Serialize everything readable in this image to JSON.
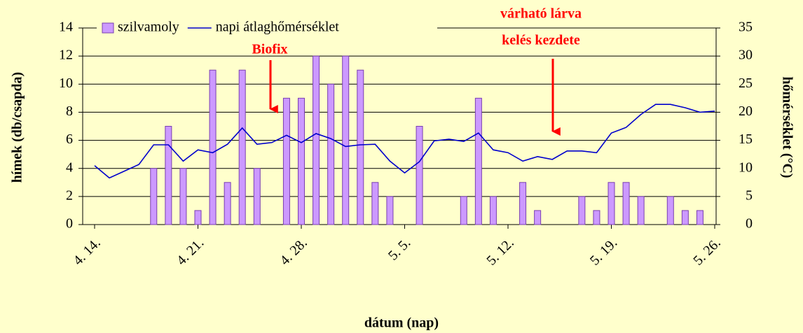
{
  "chart_data": {
    "type": "bar_line",
    "categories": [
      "4. 14.",
      null,
      null,
      null,
      null,
      null,
      null,
      "4. 21.",
      null,
      null,
      null,
      null,
      null,
      null,
      "4. 28.",
      null,
      null,
      null,
      null,
      null,
      null,
      "5. 5.",
      null,
      null,
      null,
      null,
      null,
      null,
      "5. 12.",
      null,
      null,
      null,
      null,
      null,
      null,
      "5. 19.",
      null,
      null,
      null,
      null,
      null,
      null,
      "5. 26."
    ],
    "series": [
      {
        "name": "szilvamoly",
        "type": "bar",
        "color": "#cc99ff",
        "axis": "y",
        "values": [
          null,
          null,
          null,
          null,
          4,
          7,
          4,
          1,
          11,
          3,
          11,
          4,
          null,
          9,
          9,
          12,
          10,
          12,
          11,
          3,
          2,
          null,
          7,
          null,
          null,
          2,
          9,
          2,
          null,
          3,
          1,
          null,
          null,
          2,
          1,
          3,
          3,
          2,
          null,
          2,
          1,
          1,
          null
        ]
      },
      {
        "name": "napi átlaghőmérséklet",
        "type": "line",
        "color": "#0000cc",
        "axis": "y2",
        "values": [
          10.5,
          8.3,
          9.5,
          10.7,
          14.2,
          14.2,
          11.3,
          13.3,
          12.8,
          14.3,
          17.2,
          14.3,
          14.6,
          15.9,
          14.6,
          16.2,
          15.3,
          13.9,
          14.2,
          14.3,
          11.3,
          9.2,
          11.2,
          14.9,
          15.2,
          14.8,
          16.3,
          13.3,
          12.8,
          11.3,
          12.1,
          11.6,
          13.1,
          13.1,
          12.8,
          16.3,
          17.3,
          19.6,
          21.4,
          21.4,
          20.8,
          20.0,
          20.2
        ]
      }
    ],
    "xlabel": "dátum (nap)",
    "ylabel": "hímek (db/csapda)",
    "y2label": "hőmérséklet (°C)",
    "ylim": [
      0,
      14
    ],
    "yticks": [
      0,
      2,
      4,
      6,
      8,
      10,
      12,
      14
    ],
    "y2lim": [
      0,
      35
    ],
    "y2ticks": [
      0,
      5,
      10,
      15,
      20,
      25,
      30,
      35
    ],
    "grid": true,
    "annotations": [
      "Biofix",
      "várható lárva",
      "kelés kezdete"
    ]
  }
}
